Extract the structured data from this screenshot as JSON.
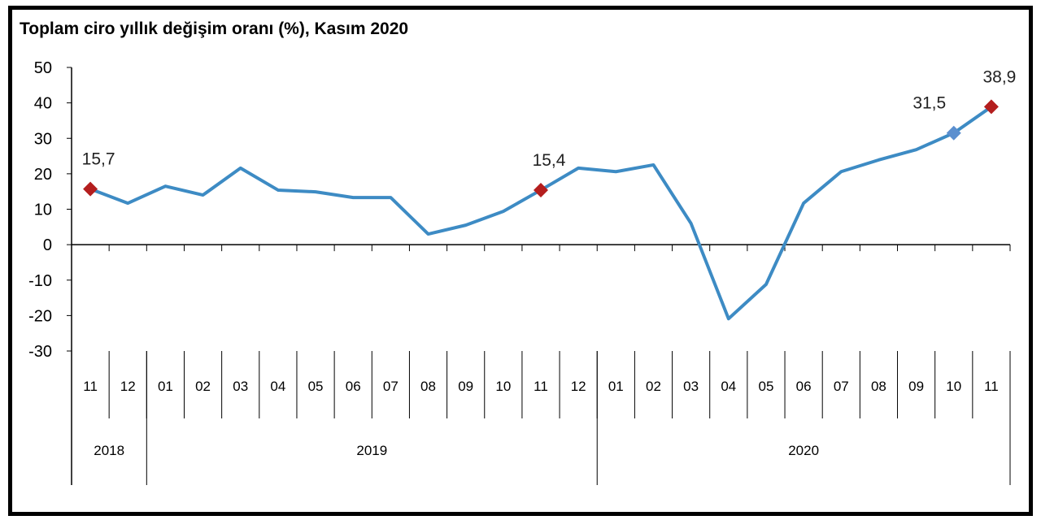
{
  "chart_data": {
    "type": "line",
    "title": "Toplam ciro yıllık değişim oranı (%), Kasım 2020",
    "ylim": [
      -30,
      50
    ],
    "yticks": [
      50,
      40,
      30,
      20,
      10,
      0,
      -10,
      -20,
      -30
    ],
    "grid": false,
    "categories": [
      "11",
      "12",
      "01",
      "02",
      "03",
      "04",
      "05",
      "06",
      "07",
      "08",
      "09",
      "10",
      "11",
      "12",
      "01",
      "02",
      "03",
      "04",
      "05",
      "06",
      "07",
      "08",
      "09",
      "10",
      "11"
    ],
    "years": [
      {
        "label": "2018",
        "span": 2
      },
      {
        "label": "2019",
        "span": 12
      },
      {
        "label": "2020",
        "span": 11
      }
    ],
    "values": [
      15.7,
      11.7,
      16.5,
      14.0,
      21.6,
      15.4,
      14.9,
      13.3,
      13.3,
      3.0,
      5.5,
      9.4,
      15.4,
      21.6,
      20.6,
      22.5,
      6.0,
      -20.9,
      -11.2,
      11.7,
      20.6,
      23.9,
      26.8,
      31.5,
      38.9
    ],
    "line_color": "#3D8BC4",
    "markers": [
      {
        "index": 0,
        "label": "15,7",
        "color": "#B41E1E"
      },
      {
        "index": 12,
        "label": "15,4",
        "color": "#B41E1E"
      },
      {
        "index": 23,
        "label": "31,5",
        "color": "#5B8FCF"
      },
      {
        "index": 24,
        "label": "38,9",
        "color": "#B41E1E"
      }
    ]
  }
}
